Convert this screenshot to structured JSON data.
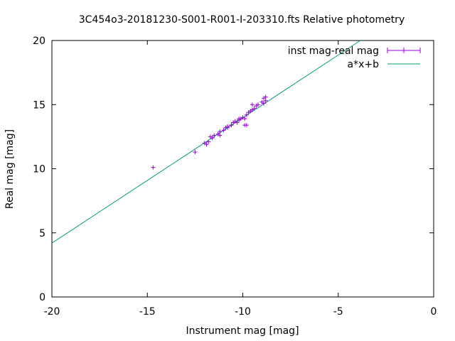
{
  "chart_data": {
    "type": "scatter",
    "title": "3C454o3-20181230-S001-R001-I-203310.fts Relative photometry",
    "xlabel": "Instrument mag [mag]",
    "ylabel": "Real mag [mag]",
    "xlim": [
      -20,
      0
    ],
    "ylim": [
      0,
      20
    ],
    "xticks": [
      -20,
      -15,
      -10,
      -5,
      0
    ],
    "yticks": [
      0,
      5,
      10,
      15,
      20
    ],
    "xtick_labels": [
      "-20",
      "-15",
      "-10",
      "-5",
      "0"
    ],
    "ytick_labels": [
      "0",
      "5",
      "10",
      "15",
      "20"
    ],
    "grid": false,
    "legend_position": "top-right",
    "series": [
      {
        "name": "inst mag-real mag",
        "kind": "points-with-xerror",
        "color": "#9400d3",
        "points": [
          [
            -14.7,
            10.1
          ],
          [
            -12.5,
            11.3
          ],
          [
            -12.0,
            12.0
          ],
          [
            -11.9,
            11.9
          ],
          [
            -11.8,
            12.1
          ],
          [
            -11.6,
            12.4
          ],
          [
            -11.5,
            12.6
          ],
          [
            -11.3,
            12.7
          ],
          [
            -11.2,
            12.9
          ],
          [
            -11.0,
            13.0
          ],
          [
            -10.9,
            13.2
          ],
          [
            -10.8,
            13.3
          ],
          [
            -10.6,
            13.4
          ],
          [
            -10.5,
            13.6
          ],
          [
            -10.4,
            13.7
          ],
          [
            -10.3,
            13.6
          ],
          [
            -10.2,
            13.8
          ],
          [
            -10.1,
            13.9
          ],
          [
            -10.0,
            14.0
          ],
          [
            -9.9,
            13.9
          ],
          [
            -9.8,
            14.2
          ],
          [
            -9.7,
            14.4
          ],
          [
            -9.6,
            14.5
          ],
          [
            -9.5,
            14.6
          ],
          [
            -9.4,
            14.7
          ],
          [
            -9.5,
            15.0
          ],
          [
            -9.3,
            14.9
          ],
          [
            -9.2,
            15.0
          ],
          [
            -9.0,
            15.2
          ],
          [
            -8.9,
            15.1
          ],
          [
            -8.8,
            15.3
          ],
          [
            -8.9,
            15.5
          ],
          [
            -8.8,
            15.6
          ],
          [
            -9.9,
            13.4
          ],
          [
            -9.8,
            13.4
          ],
          [
            -10.6,
            13.4
          ],
          [
            -11.2,
            12.6
          ],
          [
            -11.7,
            12.5
          ],
          [
            -10.8,
            13.2
          ],
          [
            -10.2,
            13.9
          ]
        ]
      },
      {
        "name": "a*x+b",
        "kind": "line",
        "color": "#009e73",
        "points": [
          [
            -20,
            4.2
          ],
          [
            -3.84,
            20
          ]
        ]
      }
    ]
  }
}
